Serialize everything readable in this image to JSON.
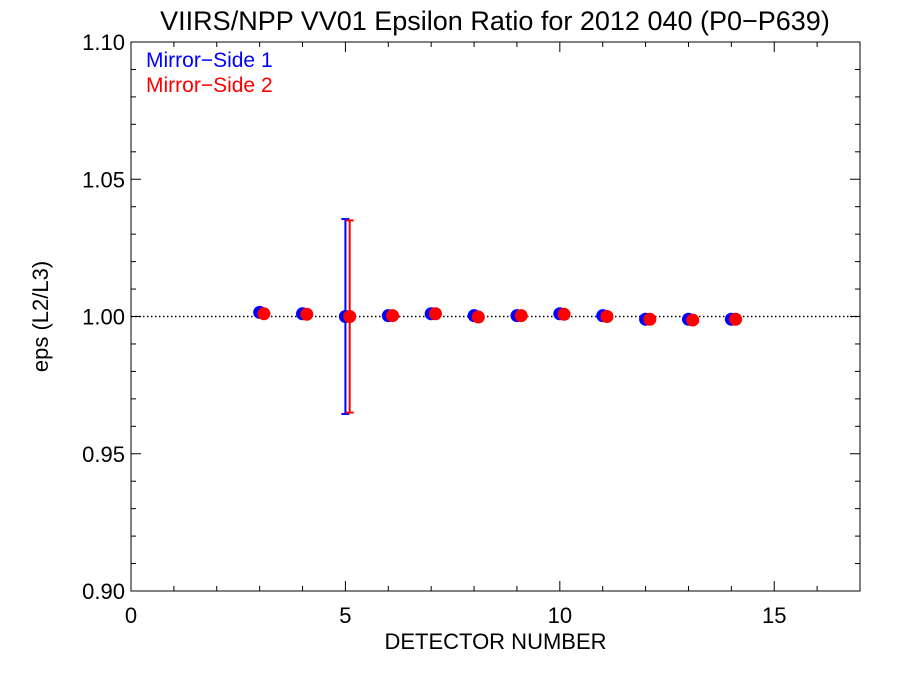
{
  "chart_data": {
    "type": "scatter",
    "title": "VIIRS/NPP VV01 Epsilon Ratio for 2012 040 (P0−P639)",
    "xlabel": "DETECTOR NUMBER",
    "ylabel": "eps (L2/L3)",
    "xlim": [
      0,
      17
    ],
    "ylim": [
      0.9,
      1.1
    ],
    "x_ticks": [
      0,
      5,
      10,
      15
    ],
    "x_tick_labels": [
      "0",
      "5",
      "10",
      "15"
    ],
    "y_ticks": [
      0.9,
      0.95,
      1.0,
      1.05,
      1.1
    ],
    "y_tick_labels": [
      "0.90",
      "0.95",
      "1.00",
      "1.05",
      "1.10"
    ],
    "reference_line": 1.0,
    "legend_position": "top-left",
    "series": [
      {
        "name": "Mirror−Side 1",
        "color": "#0000ff",
        "x": [
          3,
          4,
          5,
          6,
          7,
          8,
          9,
          10,
          11,
          12,
          13,
          14
        ],
        "y": [
          1.0015,
          1.001,
          1.0,
          1.0003,
          1.001,
          1.0003,
          1.0003,
          1.001,
          1.0003,
          0.999,
          0.999,
          0.999
        ],
        "error_bars": [
          {
            "x": 5,
            "low": 0.9645,
            "high": 1.0355
          }
        ]
      },
      {
        "name": "Mirror−Side 2",
        "color": "#ff0000",
        "x": [
          3.1,
          4.1,
          5.1,
          6.1,
          7.1,
          8.1,
          9.1,
          10.1,
          11.1,
          12.1,
          13.1,
          14.1
        ],
        "y": [
          1.001,
          1.0008,
          1.0,
          1.0003,
          1.001,
          0.9998,
          1.0003,
          1.0008,
          1.0,
          0.999,
          0.9987,
          0.999
        ],
        "error_bars": [
          {
            "x": 5.1,
            "low": 0.965,
            "high": 1.035
          }
        ]
      }
    ]
  }
}
